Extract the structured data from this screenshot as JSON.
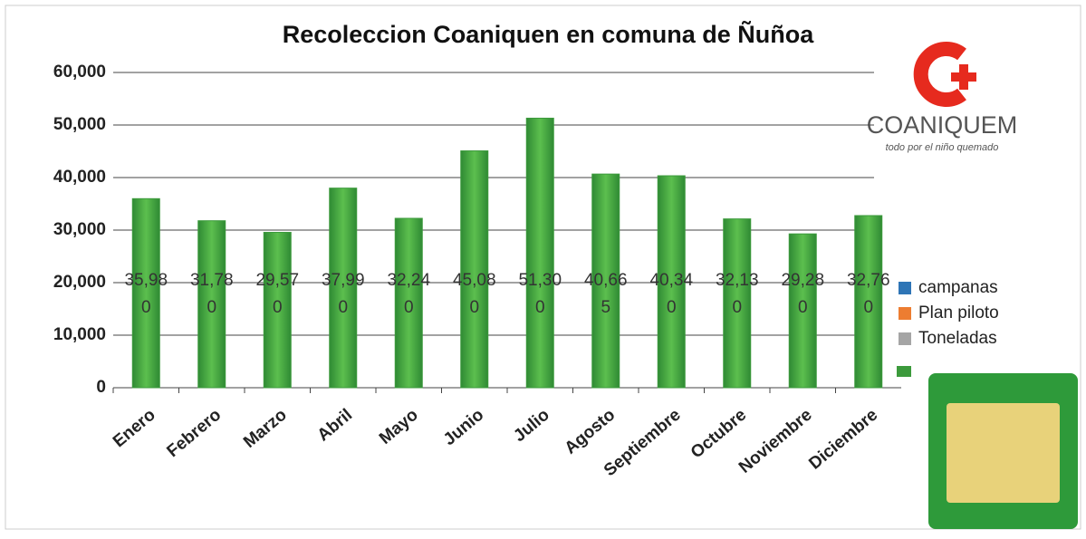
{
  "chart_data": {
    "type": "bar",
    "title": "Recoleccion Coaniquen en comuna de Ñuñoa",
    "categories": [
      "Enero",
      "Febrero",
      "Marzo",
      "Abril",
      "Mayo",
      "Junio",
      "Julio",
      "Agosto",
      "Septiembre",
      "Octubre",
      "Noviembre",
      "Diciembre"
    ],
    "values": [
      35980,
      31780,
      29570,
      37990,
      32240,
      45080,
      51300,
      40665,
      40340,
      32130,
      29280,
      32760
    ],
    "value_labels": [
      "35,980",
      "31,780",
      "29,570",
      "37,990",
      "32,240",
      "45,080",
      "51,300",
      "40,665",
      "40,340",
      "32,130",
      "29,280",
      "32,760"
    ],
    "color": "#3c9a3c",
    "ylim": [
      0,
      60000
    ],
    "yticks": [
      0,
      {
        "value": 10000,
        "label": "10,000"
      },
      {
        "value": 20000,
        "label": "20,000"
      },
      {
        "value": 30000,
        "label": "30,000"
      },
      {
        "value": 40000,
        "label": "40,000"
      },
      {
        "value": 50000,
        "label": "50,000"
      },
      {
        "value": 60000,
        "label": "60,000"
      }
    ],
    "grid": true,
    "legend": [
      {
        "name": "campanas",
        "color": "#2e75b6"
      },
      {
        "name": "Plan piloto",
        "color": "#ed7d31"
      },
      {
        "name": "Toneladas",
        "color": "#a5a5a5"
      }
    ]
  },
  "logo": {
    "name": "COANIQUEM",
    "tagline": "todo por el niño quemado"
  }
}
